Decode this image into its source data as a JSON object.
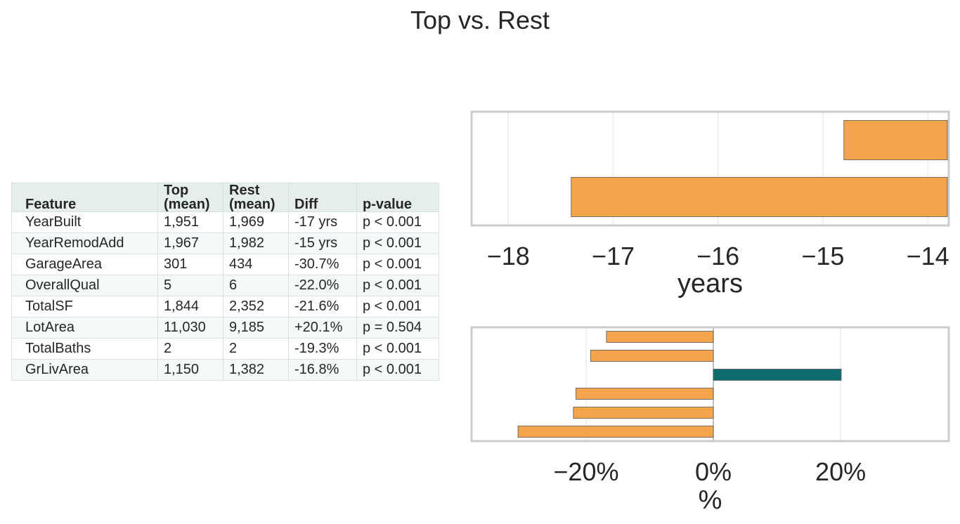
{
  "figure": {
    "title": "Top vs. Rest"
  },
  "table": {
    "headers": [
      [
        "Feature"
      ],
      [
        "Top",
        "(mean)"
      ],
      [
        "Rest",
        "(mean)"
      ],
      [
        "Diff"
      ],
      [
        "p-value"
      ]
    ],
    "rows": [
      [
        "YearBuilt",
        "1,951",
        "1,969",
        "-17 yrs",
        "p < 0.001"
      ],
      [
        "YearRemodAdd",
        "1,967",
        "1,982",
        "-15 yrs",
        "p < 0.001"
      ],
      [
        "GarageArea",
        "301",
        "434",
        "-30.7%",
        "p < 0.001"
      ],
      [
        "OverallQual",
        "5",
        "6",
        "-22.0%",
        "p < 0.001"
      ],
      [
        "TotalSF",
        "1,844",
        "2,352",
        "-21.6%",
        "p < 0.001"
      ],
      [
        "LotArea",
        "11,030",
        "9,185",
        "+20.1%",
        "p = 0.504"
      ],
      [
        "TotalBaths",
        "2",
        "2",
        "-19.3%",
        "p < 0.001"
      ],
      [
        "GrLivArea",
        "1,150",
        "1,382",
        "-16.8%",
        "p < 0.001"
      ]
    ]
  },
  "colors": {
    "negative": "#F4A54B",
    "positive": "#0E6B6E",
    "frame": "#cccccc",
    "grid": "#ececec"
  },
  "chart_data": [
    {
      "type": "bar",
      "orientation": "horizontal",
      "title": "",
      "xlabel": "years",
      "ylabel": "",
      "xlim": [
        -18.35,
        -13.8
      ],
      "xticks": [
        -18,
        -17,
        -16,
        -15,
        -14
      ],
      "xtick_labels": [
        "−18",
        "−17",
        "−16",
        "−15",
        "−14"
      ],
      "grid": true,
      "bars": [
        {
          "value": -14.8
        },
        {
          "value": -17.4
        }
      ]
    },
    {
      "type": "bar",
      "orientation": "horizontal",
      "title": "",
      "xlabel": "%",
      "ylabel": "",
      "xlim": [
        -38,
        37
      ],
      "xticks": [
        -20,
        0,
        20
      ],
      "xtick_labels": [
        "−20%",
        "0%",
        "20%"
      ],
      "grid": true,
      "bars": [
        {
          "value": -16.8
        },
        {
          "value": -19.3
        },
        {
          "value": 20.1
        },
        {
          "value": -21.6
        },
        {
          "value": -22.0
        },
        {
          "value": -30.7
        }
      ]
    }
  ]
}
